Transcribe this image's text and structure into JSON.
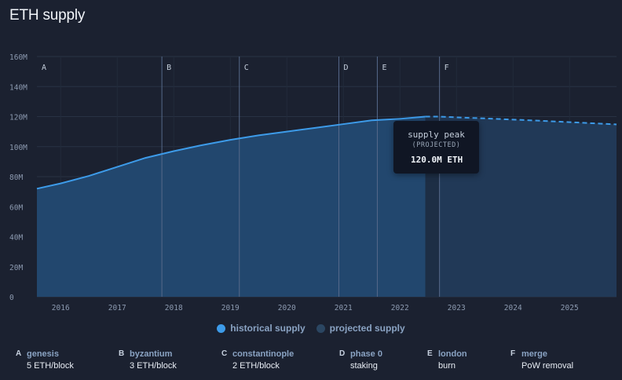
{
  "title": "ETH supply",
  "chart_data": {
    "type": "area",
    "title": "ETH supply",
    "xlabel": "",
    "ylabel": "",
    "ylim": [
      0,
      160
    ],
    "xlim": [
      2015.58,
      2025.83
    ],
    "y_unit": "M",
    "y_ticks": [
      0,
      20,
      40,
      60,
      80,
      100,
      120,
      140,
      160
    ],
    "y_tick_labels": [
      "0",
      "20M",
      "40M",
      "60M",
      "80M",
      "100M",
      "120M",
      "140M",
      "160M"
    ],
    "x_ticks": [
      2016,
      2017,
      2018,
      2019,
      2020,
      2021,
      2022,
      2023,
      2024,
      2025
    ],
    "x_tick_labels": [
      "2016",
      "2017",
      "2018",
      "2019",
      "2020",
      "2021",
      "2022",
      "2023",
      "2024",
      "2025"
    ],
    "grid": true,
    "legend_position": "bottom",
    "series": [
      {
        "name": "historical supply",
        "color": "#3d9be9",
        "style": "solid",
        "x": [
          2015.58,
          2016.0,
          2016.5,
          2017.0,
          2017.5,
          2018.0,
          2018.5,
          2019.0,
          2019.5,
          2020.0,
          2020.5,
          2021.0,
          2021.5,
          2022.0,
          2022.45
        ],
        "y": [
          72.0,
          75.5,
          80.5,
          86.5,
          92.5,
          97.0,
          101.0,
          104.5,
          107.5,
          110.0,
          112.5,
          115.0,
          117.5,
          118.5,
          120.0
        ]
      },
      {
        "name": "projected supply",
        "color": "#3d9be9",
        "style": "dashed",
        "x": [
          2022.45,
          2022.7,
          2023.0,
          2023.5,
          2024.0,
          2024.5,
          2025.0,
          2025.5,
          2025.83
        ],
        "y": [
          120.0,
          120.0,
          119.5,
          118.8,
          118.0,
          117.2,
          116.3,
          115.4,
          114.8
        ]
      }
    ],
    "events": [
      {
        "letter": "A",
        "name": "genesis",
        "desc": "5 ETH/block",
        "x": 2015.58
      },
      {
        "letter": "B",
        "name": "byzantium",
        "desc": "3 ETH/block",
        "x": 2017.79
      },
      {
        "letter": "C",
        "name": "constantinople",
        "desc": "2 ETH/block",
        "x": 2019.16
      },
      {
        "letter": "D",
        "name": "phase 0",
        "desc": "staking",
        "x": 2020.92
      },
      {
        "letter": "E",
        "name": "london",
        "desc": "burn",
        "x": 2021.6
      },
      {
        "letter": "F",
        "name": "merge",
        "desc": "PoW removal",
        "x": 2022.7
      }
    ],
    "annotation": {
      "title": "supply peak",
      "subtitle": "(PROJECTED)",
      "value": "120.0M ETH",
      "x": 2022.7,
      "y": 120.0
    }
  },
  "legend": {
    "historical": {
      "label": "historical supply",
      "color": "#3d9be9"
    },
    "projected": {
      "label": "projected supply",
      "color": "#2b4662"
    }
  }
}
